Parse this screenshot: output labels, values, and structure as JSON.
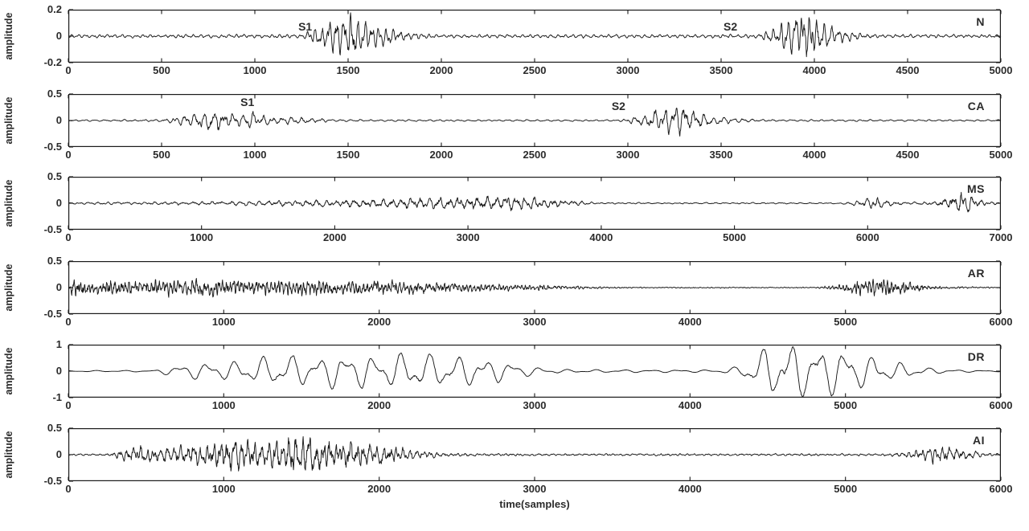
{
  "figure": {
    "xlabel": "time(samples)",
    "ylabel": "amplitude",
    "background_color": "#ffffff",
    "line_color": "#1a1a1a",
    "text_color": "#2b2b2b"
  },
  "chart_data": [
    {
      "type": "line",
      "label": "N",
      "ylabel": "amplitude",
      "xlim": [
        0,
        5000
      ],
      "ylim": [
        -0.2,
        0.2
      ],
      "xticks": [
        0,
        500,
        1000,
        1500,
        2000,
        2500,
        3000,
        3500,
        4000,
        4500,
        5000
      ],
      "yticks": [
        0.2,
        0,
        -0.2
      ],
      "grid": false,
      "annotations": [
        {
          "text": "S1",
          "x": 1270,
          "y": 0.065
        },
        {
          "text": "S2",
          "x": 3550,
          "y": 0.065
        }
      ],
      "signal": {
        "description": "normal heart sound: quiet baseline with S1 burst ~1300-1700 (peak 0.17) and S2 burst ~3800-4100 (peak 0.2)",
        "freq": 26,
        "noise": 0.3,
        "seed": 3,
        "points": 2600,
        "envelope": [
          [
            0,
            0.012
          ],
          [
            1250,
            0.014
          ],
          [
            1350,
            0.08
          ],
          [
            1500,
            0.17
          ],
          [
            1620,
            0.09
          ],
          [
            1750,
            0.05
          ],
          [
            1850,
            0.025
          ],
          [
            1950,
            0.013
          ],
          [
            3700,
            0.013
          ],
          [
            3820,
            0.09
          ],
          [
            3930,
            0.2
          ],
          [
            4050,
            0.09
          ],
          [
            4150,
            0.045
          ],
          [
            4250,
            0.02
          ],
          [
            4350,
            0.013
          ],
          [
            5000,
            0.012
          ]
        ]
      }
    },
    {
      "type": "line",
      "label": "CA",
      "ylabel": "amplitude",
      "xlim": [
        0,
        5000
      ],
      "ylim": [
        -0.5,
        0.5
      ],
      "xticks": [
        0,
        500,
        1000,
        1500,
        2000,
        2500,
        3000,
        3500,
        4000,
        4500,
        5000
      ],
      "yticks": [
        0.5,
        0,
        -0.5
      ],
      "grid": false,
      "annotations": [
        {
          "text": "S1",
          "x": 960,
          "y": 0.33
        },
        {
          "text": "S2",
          "x": 2950,
          "y": 0.26
        }
      ],
      "signal": {
        "description": "coronary artery disease: S1 burst ~600-1400 (peak 0.19) and S2 burst ~3050-3550 (peak 0.28)",
        "freq": 19,
        "noise": 0.3,
        "seed": 11,
        "points": 2600,
        "envelope": [
          [
            0,
            0.015
          ],
          [
            500,
            0.02
          ],
          [
            620,
            0.1
          ],
          [
            780,
            0.19
          ],
          [
            900,
            0.13
          ],
          [
            1000,
            0.14
          ],
          [
            1100,
            0.08
          ],
          [
            1250,
            0.06
          ],
          [
            1400,
            0.025
          ],
          [
            1600,
            0.018
          ],
          [
            2950,
            0.016
          ],
          [
            3080,
            0.1
          ],
          [
            3200,
            0.25
          ],
          [
            3300,
            0.28
          ],
          [
            3400,
            0.12
          ],
          [
            3500,
            0.07
          ],
          [
            3650,
            0.03
          ],
          [
            3800,
            0.018
          ],
          [
            5000,
            0.015
          ]
        ]
      }
    },
    {
      "type": "line",
      "label": "MS",
      "ylabel": "amplitude",
      "xlim": [
        0,
        7000
      ],
      "ylim": [
        -0.5,
        0.5
      ],
      "xticks": [
        0,
        1000,
        2000,
        3000,
        4000,
        5000,
        6000,
        7000
      ],
      "yticks": [
        0.5,
        0,
        -0.5
      ],
      "grid": false,
      "annotations": [],
      "signal": {
        "description": "mitral stenosis: slowly growing murmur peaking ~2400-3400 (0.14), quiet 4000-5800, bursts at ~6000 and ~6700 (0.22)",
        "freq": 14,
        "noise": 0.38,
        "seed": 19,
        "points": 2800,
        "envelope": [
          [
            0,
            0.02
          ],
          [
            500,
            0.025
          ],
          [
            1000,
            0.035
          ],
          [
            1500,
            0.05
          ],
          [
            2000,
            0.07
          ],
          [
            2400,
            0.1
          ],
          [
            2700,
            0.12
          ],
          [
            3000,
            0.12
          ],
          [
            3300,
            0.14
          ],
          [
            3500,
            0.1
          ],
          [
            3700,
            0.07
          ],
          [
            3850,
            0.04
          ],
          [
            3950,
            0.015
          ],
          [
            5800,
            0.012
          ],
          [
            5950,
            0.06
          ],
          [
            6050,
            0.12
          ],
          [
            6150,
            0.05
          ],
          [
            6300,
            0.02
          ],
          [
            6500,
            0.04
          ],
          [
            6600,
            0.12
          ],
          [
            6700,
            0.22
          ],
          [
            6800,
            0.1
          ],
          [
            6900,
            0.04
          ],
          [
            7000,
            0.02
          ]
        ]
      }
    },
    {
      "type": "line",
      "label": "AR",
      "ylabel": "amplitude",
      "xlim": [
        0,
        6000
      ],
      "ylim": [
        -0.5,
        0.5
      ],
      "xticks": [
        0,
        1000,
        2000,
        3000,
        4000,
        5000,
        6000
      ],
      "yticks": [
        0.5,
        0,
        -0.5
      ],
      "grid": false,
      "annotations": [],
      "signal": {
        "description": "aortic regurgitation: dense high-frequency activity 0-2500 (~0.16) decaying to ~3500, quiet, then burst ~5100-5450 (0.2)",
        "freq": 42,
        "noise": 0.5,
        "seed": 5,
        "points": 3000,
        "envelope": [
          [
            0,
            0.06
          ],
          [
            50,
            0.2
          ],
          [
            150,
            0.12
          ],
          [
            300,
            0.16
          ],
          [
            600,
            0.14
          ],
          [
            900,
            0.16
          ],
          [
            1200,
            0.14
          ],
          [
            1500,
            0.16
          ],
          [
            1800,
            0.14
          ],
          [
            2100,
            0.12
          ],
          [
            2400,
            0.1
          ],
          [
            2700,
            0.07
          ],
          [
            3000,
            0.05
          ],
          [
            3300,
            0.03
          ],
          [
            3500,
            0.015
          ],
          [
            3800,
            0.01
          ],
          [
            4800,
            0.01
          ],
          [
            4950,
            0.05
          ],
          [
            5080,
            0.14
          ],
          [
            5200,
            0.2
          ],
          [
            5320,
            0.16
          ],
          [
            5420,
            0.1
          ],
          [
            5520,
            0.05
          ],
          [
            5650,
            0.02
          ],
          [
            6000,
            0.01
          ]
        ]
      }
    },
    {
      "type": "line",
      "label": "DR",
      "ylabel": "amplitude",
      "xlim": [
        0,
        6000
      ],
      "ylim": [
        -1,
        1
      ],
      "xticks": [
        0,
        1000,
        2000,
        3000,
        4000,
        5000,
        6000
      ],
      "yticks": [
        1,
        0,
        -1
      ],
      "grid": false,
      "annotations": [],
      "signal": {
        "description": "slow large oscillation 600-3000 (0.3-0.68), nearly flat 3100-4250, strong burst 4300-5500 (up to 0.9)",
        "freq": 5.6,
        "noise": 0.07,
        "seed": 29,
        "points": 2000,
        "envelope": [
          [
            0,
            0.02
          ],
          [
            560,
            0.03
          ],
          [
            680,
            0.18
          ],
          [
            820,
            0.28
          ],
          [
            1000,
            0.3
          ],
          [
            1150,
            0.38
          ],
          [
            1300,
            0.5
          ],
          [
            1450,
            0.55
          ],
          [
            1600,
            0.45
          ],
          [
            1750,
            0.62
          ],
          [
            1900,
            0.55
          ],
          [
            2050,
            0.5
          ],
          [
            2200,
            0.68
          ],
          [
            2350,
            0.55
          ],
          [
            2500,
            0.5
          ],
          [
            2650,
            0.45
          ],
          [
            2800,
            0.35
          ],
          [
            2950,
            0.18
          ],
          [
            3100,
            0.07
          ],
          [
            3300,
            0.05
          ],
          [
            4200,
            0.04
          ],
          [
            4300,
            0.15
          ],
          [
            4400,
            0.5
          ],
          [
            4500,
            0.85
          ],
          [
            4650,
            0.9
          ],
          [
            4800,
            0.85
          ],
          [
            4950,
            0.8
          ],
          [
            5100,
            0.6
          ],
          [
            5250,
            0.4
          ],
          [
            5400,
            0.22
          ],
          [
            5550,
            0.1
          ],
          [
            5750,
            0.04
          ],
          [
            6000,
            0.02
          ]
        ]
      }
    },
    {
      "type": "line",
      "label": "AI",
      "ylabel": "amplitude",
      "xlim": [
        0,
        6000
      ],
      "ylim": [
        -0.5,
        0.5
      ],
      "xticks": [
        0,
        1000,
        2000,
        3000,
        4000,
        5000,
        6000
      ],
      "yticks": [
        0.5,
        0,
        -0.5
      ],
      "grid": false,
      "annotations": [],
      "signal": {
        "description": "aortic insufficiency: dense burst 300-2300 peaking ~1500 (0.4), quiet middle, small burst ~5400-5850 (0.16)",
        "freq": 23,
        "noise": 0.42,
        "seed": 13,
        "points": 2800,
        "envelope": [
          [
            0,
            0.015
          ],
          [
            270,
            0.02
          ],
          [
            360,
            0.12
          ],
          [
            450,
            0.16
          ],
          [
            600,
            0.14
          ],
          [
            750,
            0.2
          ],
          [
            900,
            0.18
          ],
          [
            1000,
            0.28
          ],
          [
            1100,
            0.33
          ],
          [
            1250,
            0.25
          ],
          [
            1400,
            0.3
          ],
          [
            1500,
            0.4
          ],
          [
            1600,
            0.3
          ],
          [
            1750,
            0.28
          ],
          [
            1900,
            0.22
          ],
          [
            2050,
            0.18
          ],
          [
            2200,
            0.1
          ],
          [
            2350,
            0.05
          ],
          [
            2500,
            0.03
          ],
          [
            2700,
            0.022
          ],
          [
            5250,
            0.02
          ],
          [
            5400,
            0.06
          ],
          [
            5550,
            0.14
          ],
          [
            5650,
            0.16
          ],
          [
            5750,
            0.1
          ],
          [
            5900,
            0.04
          ],
          [
            6000,
            0.02
          ]
        ]
      }
    }
  ]
}
